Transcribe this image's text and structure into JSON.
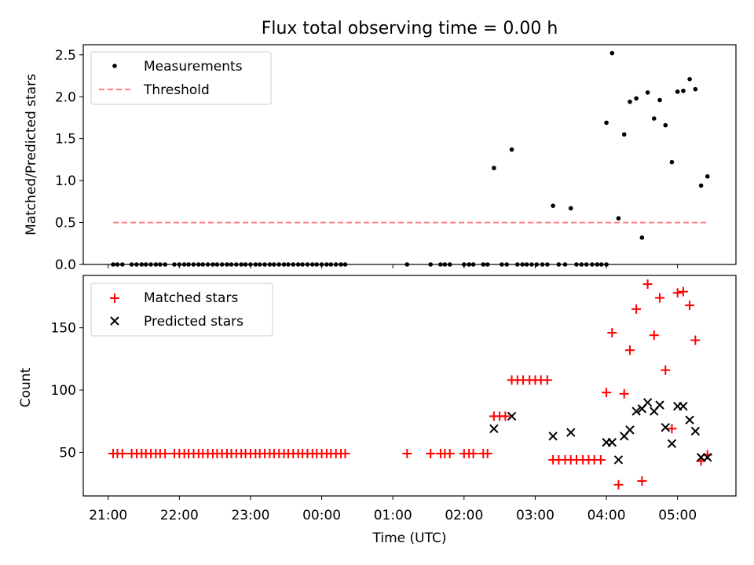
{
  "chart_data": {
    "title": "Flux total observing time = 0.00 h",
    "xlabel": "Time (UTC)",
    "xticks": [
      {
        "v": 21.0,
        "label": "21:00"
      },
      {
        "v": 22.0,
        "label": "22:00"
      },
      {
        "v": 23.0,
        "label": "23:00"
      },
      {
        "v": 24.0,
        "label": "00:00"
      },
      {
        "v": 25.0,
        "label": "01:00"
      },
      {
        "v": 26.0,
        "label": "02:00"
      },
      {
        "v": 27.0,
        "label": "03:00"
      },
      {
        "v": 28.0,
        "label": "04:00"
      },
      {
        "v": 29.0,
        "label": "05:00"
      }
    ],
    "xlim": [
      20.65,
      29.82
    ],
    "top": {
      "type": "scatter",
      "ylabel": "Matched/Predicted stars",
      "ylim": [
        0,
        2.62
      ],
      "yticks": [
        {
          "v": 0,
          "label": "0.0"
        },
        {
          "v": 0.5,
          "label": "0.5"
        },
        {
          "v": 1.0,
          "label": "1.0"
        },
        {
          "v": 1.5,
          "label": "1.5"
        },
        {
          "v": 2.0,
          "label": "2.0"
        },
        {
          "v": 2.5,
          "label": "2.5"
        }
      ],
      "legend": {
        "position": "top-left",
        "measurements": "Measurements",
        "threshold": "Threshold"
      },
      "threshold": {
        "value": 0.5,
        "x": [
          21.07,
          29.43
        ],
        "color": "#ff8080"
      },
      "measurements": [
        [
          21.07,
          0
        ],
        [
          21.13,
          0
        ],
        [
          21.2,
          0
        ],
        [
          21.33,
          0
        ],
        [
          21.4,
          0
        ],
        [
          21.47,
          0
        ],
        [
          21.53,
          0
        ],
        [
          21.6,
          0
        ],
        [
          21.67,
          0
        ],
        [
          21.73,
          0
        ],
        [
          21.8,
          0
        ],
        [
          21.93,
          0
        ],
        [
          22.0,
          0
        ],
        [
          22.07,
          0
        ],
        [
          22.13,
          0
        ],
        [
          22.2,
          0
        ],
        [
          22.27,
          0
        ],
        [
          22.33,
          0
        ],
        [
          22.4,
          0
        ],
        [
          22.47,
          0
        ],
        [
          22.53,
          0
        ],
        [
          22.6,
          0
        ],
        [
          22.67,
          0
        ],
        [
          22.73,
          0
        ],
        [
          22.8,
          0
        ],
        [
          22.87,
          0
        ],
        [
          22.93,
          0
        ],
        [
          23.0,
          0
        ],
        [
          23.07,
          0
        ],
        [
          23.13,
          0
        ],
        [
          23.2,
          0
        ],
        [
          23.27,
          0
        ],
        [
          23.33,
          0
        ],
        [
          23.4,
          0
        ],
        [
          23.47,
          0
        ],
        [
          23.53,
          0
        ],
        [
          23.6,
          0
        ],
        [
          23.67,
          0
        ],
        [
          23.73,
          0
        ],
        [
          23.8,
          0
        ],
        [
          23.87,
          0
        ],
        [
          23.93,
          0
        ],
        [
          24.0,
          0
        ],
        [
          24.07,
          0
        ],
        [
          24.13,
          0
        ],
        [
          24.2,
          0
        ],
        [
          24.27,
          0
        ],
        [
          24.33,
          0
        ],
        [
          25.2,
          0
        ],
        [
          25.53,
          0
        ],
        [
          25.67,
          0
        ],
        [
          25.73,
          0
        ],
        [
          25.8,
          0
        ],
        [
          26.0,
          0
        ],
        [
          26.07,
          0
        ],
        [
          26.13,
          0
        ],
        [
          26.27,
          0
        ],
        [
          26.33,
          0
        ],
        [
          26.42,
          1.15
        ],
        [
          26.53,
          0
        ],
        [
          26.6,
          0
        ],
        [
          26.67,
          1.37
        ],
        [
          26.75,
          0
        ],
        [
          26.82,
          0
        ],
        [
          26.88,
          0
        ],
        [
          26.95,
          0
        ],
        [
          27.02,
          0
        ],
        [
          27.1,
          0
        ],
        [
          27.17,
          0
        ],
        [
          27.25,
          0.7
        ],
        [
          27.33,
          0
        ],
        [
          27.42,
          0
        ],
        [
          27.5,
          0.67
        ],
        [
          27.58,
          0
        ],
        [
          27.65,
          0
        ],
        [
          27.72,
          0
        ],
        [
          27.8,
          0
        ],
        [
          27.87,
          0
        ],
        [
          27.93,
          0
        ],
        [
          28.0,
          0
        ],
        [
          28.0,
          1.69
        ],
        [
          28.08,
          2.52
        ],
        [
          28.17,
          0.55
        ],
        [
          28.25,
          1.55
        ],
        [
          28.33,
          1.94
        ],
        [
          28.42,
          1.98
        ],
        [
          28.5,
          0.32
        ],
        [
          28.58,
          2.05
        ],
        [
          28.67,
          1.74
        ],
        [
          28.75,
          1.96
        ],
        [
          28.83,
          1.66
        ],
        [
          28.92,
          1.22
        ],
        [
          29.0,
          2.06
        ],
        [
          29.08,
          2.07
        ],
        [
          29.17,
          2.21
        ],
        [
          29.25,
          2.09
        ],
        [
          29.33,
          0.94
        ],
        [
          29.42,
          1.05
        ]
      ]
    },
    "bottom": {
      "type": "scatter",
      "ylabel": "Count",
      "ylim": [
        15,
        192
      ],
      "yticks": [
        {
          "v": 50,
          "label": "50"
        },
        {
          "v": 100,
          "label": "100"
        },
        {
          "v": 150,
          "label": "150"
        }
      ],
      "legend": {
        "position": "top-left",
        "matched": "Matched stars",
        "predicted": "Predicted stars"
      },
      "matched_color": "#ff0000",
      "predicted_color": "#000000",
      "matched": [
        [
          21.07,
          49
        ],
        [
          21.13,
          49
        ],
        [
          21.2,
          49
        ],
        [
          21.33,
          49
        ],
        [
          21.4,
          49
        ],
        [
          21.47,
          49
        ],
        [
          21.53,
          49
        ],
        [
          21.6,
          49
        ],
        [
          21.67,
          49
        ],
        [
          21.73,
          49
        ],
        [
          21.8,
          49
        ],
        [
          21.93,
          49
        ],
        [
          22.0,
          49
        ],
        [
          22.07,
          49
        ],
        [
          22.13,
          49
        ],
        [
          22.2,
          49
        ],
        [
          22.27,
          49
        ],
        [
          22.33,
          49
        ],
        [
          22.4,
          49
        ],
        [
          22.47,
          49
        ],
        [
          22.53,
          49
        ],
        [
          22.6,
          49
        ],
        [
          22.67,
          49
        ],
        [
          22.73,
          49
        ],
        [
          22.8,
          49
        ],
        [
          22.87,
          49
        ],
        [
          22.93,
          49
        ],
        [
          23.0,
          49
        ],
        [
          23.07,
          49
        ],
        [
          23.13,
          49
        ],
        [
          23.2,
          49
        ],
        [
          23.27,
          49
        ],
        [
          23.33,
          49
        ],
        [
          23.4,
          49
        ],
        [
          23.47,
          49
        ],
        [
          23.53,
          49
        ],
        [
          23.6,
          49
        ],
        [
          23.67,
          49
        ],
        [
          23.73,
          49
        ],
        [
          23.8,
          49
        ],
        [
          23.87,
          49
        ],
        [
          23.93,
          49
        ],
        [
          24.0,
          49
        ],
        [
          24.07,
          49
        ],
        [
          24.13,
          49
        ],
        [
          24.2,
          49
        ],
        [
          24.27,
          49
        ],
        [
          24.33,
          49
        ],
        [
          25.2,
          49
        ],
        [
          25.53,
          49
        ],
        [
          25.67,
          49
        ],
        [
          25.73,
          49
        ],
        [
          25.8,
          49
        ],
        [
          26.0,
          49
        ],
        [
          26.07,
          49
        ],
        [
          26.13,
          49
        ],
        [
          26.27,
          49
        ],
        [
          26.33,
          49
        ],
        [
          26.42,
          79
        ],
        [
          26.5,
          79
        ],
        [
          26.58,
          79
        ],
        [
          26.67,
          108
        ],
        [
          26.75,
          108
        ],
        [
          26.83,
          108
        ],
        [
          26.92,
          108
        ],
        [
          27.0,
          108
        ],
        [
          27.08,
          108
        ],
        [
          27.17,
          108
        ],
        [
          27.25,
          44
        ],
        [
          27.33,
          44
        ],
        [
          27.42,
          44
        ],
        [
          27.5,
          44
        ],
        [
          27.58,
          44
        ],
        [
          27.67,
          44
        ],
        [
          27.75,
          44
        ],
        [
          27.83,
          44
        ],
        [
          27.92,
          44
        ],
        [
          28.0,
          98
        ],
        [
          28.08,
          146
        ],
        [
          28.17,
          24
        ],
        [
          28.25,
          97
        ],
        [
          28.33,
          132
        ],
        [
          28.42,
          165
        ],
        [
          28.5,
          27
        ],
        [
          28.58,
          185
        ],
        [
          28.67,
          144
        ],
        [
          28.75,
          174
        ],
        [
          28.83,
          116
        ],
        [
          28.92,
          69
        ],
        [
          29.0,
          178
        ],
        [
          29.08,
          179
        ],
        [
          29.17,
          168
        ],
        [
          29.25,
          140
        ],
        [
          29.33,
          43
        ],
        [
          29.42,
          48
        ]
      ],
      "predicted": [
        [
          26.42,
          69
        ],
        [
          26.67,
          79
        ],
        [
          27.25,
          63
        ],
        [
          27.5,
          66
        ],
        [
          28.0,
          58
        ],
        [
          28.08,
          58
        ],
        [
          28.17,
          44
        ],
        [
          28.25,
          63
        ],
        [
          28.33,
          68
        ],
        [
          28.42,
          83
        ],
        [
          28.5,
          85
        ],
        [
          28.58,
          90
        ],
        [
          28.67,
          83
        ],
        [
          28.75,
          88
        ],
        [
          28.83,
          70
        ],
        [
          28.92,
          57
        ],
        [
          29.0,
          87
        ],
        [
          29.08,
          87
        ],
        [
          29.17,
          76
        ],
        [
          29.25,
          67
        ],
        [
          29.33,
          46
        ],
        [
          29.42,
          46
        ]
      ]
    }
  }
}
